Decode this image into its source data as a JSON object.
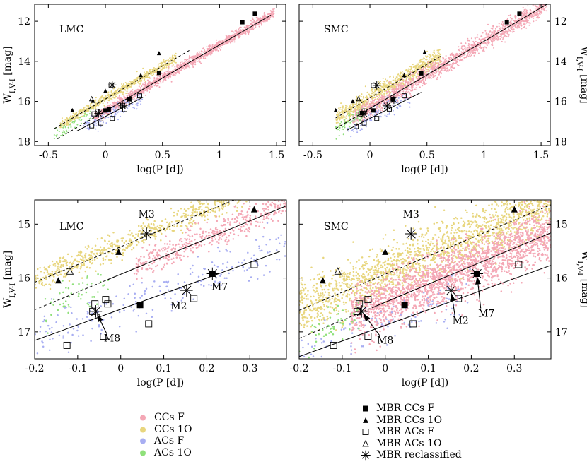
{
  "legend_left": [
    {
      "label": "CCs F",
      "color": "#f4a7b5"
    },
    {
      "label": "CCs 1O",
      "color": "#e8d67e"
    },
    {
      "label": "ACs F",
      "color": "#a8aef2"
    },
    {
      "label": "ACs 1O",
      "color": "#8fe07a"
    }
  ],
  "legend_right": [
    {
      "label": "MBR CCs F",
      "marker": "filled-square"
    },
    {
      "label": "MBR CCs 1O",
      "marker": "filled-triangle"
    },
    {
      "label": "MBR ACs F",
      "marker": "open-square"
    },
    {
      "label": "MBR ACs 1O",
      "marker": "open-triangle"
    },
    {
      "label": "MBR reclassified",
      "marker": "asterisk"
    }
  ],
  "chart_data": [
    {
      "type": "scatter",
      "panel_label": "LMC",
      "xlabel": "log(P [d])",
      "ylabel": "W_{I,V-I} [mag]",
      "ylabel_side": "left",
      "xlim": [
        -0.62,
        1.58
      ],
      "ylim": [
        18.2,
        11.15
      ],
      "xticks": [
        -0.5,
        0,
        0.5,
        1,
        1.5
      ],
      "xtick_labels": [
        "-0.5",
        "0",
        "0.5",
        "1",
        "1.5"
      ],
      "yticks": [
        12,
        14,
        16,
        18
      ],
      "ytick_labels": [
        "12",
        "14",
        "16",
        "18"
      ],
      "clouds": [
        {
          "name": "CCs 1O",
          "color": "#e8d67e",
          "x0": -0.4,
          "x1": 0.62,
          "slope": -3.3,
          "intercept": 15.88,
          "sigma": 0.11,
          "n": 700
        },
        {
          "name": "CCs F",
          "color": "#f4a7b5",
          "x0": -0.1,
          "x1": 1.48,
          "slope": -3.3,
          "intercept": 16.48,
          "sigma": 0.12,
          "n": 1500
        },
        {
          "name": "ACs F",
          "color": "#a8aef2",
          "x0": -0.2,
          "x1": 0.35,
          "slope": -2.9,
          "intercept": 16.75,
          "sigma": 0.2,
          "n": 130
        },
        {
          "name": "ACs 1O",
          "color": "#8fe07a",
          "x0": -0.45,
          "x1": -0.1,
          "slope": -3.3,
          "intercept": 16.2,
          "sigma": 0.15,
          "n": 60
        }
      ],
      "lines": [
        {
          "x": [
            -0.45,
            0.75
          ],
          "slope": -3.3,
          "intercept": 15.88,
          "style": "dashed"
        },
        {
          "x": [
            -0.05,
            1.45
          ],
          "slope": -3.3,
          "intercept": 16.48,
          "style": "solid"
        },
        {
          "x": [
            -0.42,
            0.0
          ],
          "slope": -3.3,
          "intercept": 16.48,
          "style": "dashed"
        },
        {
          "x": [
            -0.25,
            0.33
          ],
          "slope": -2.9,
          "intercept": 16.75,
          "style": "solid"
        }
      ],
      "markers": [
        {
          "x": 1.2,
          "y": 12.05,
          "type": "filled-square"
        },
        {
          "x": 1.31,
          "y": 11.62,
          "type": "filled-square"
        },
        {
          "x": 0.47,
          "y": 14.58,
          "type": "filled-square"
        },
        {
          "x": 0.21,
          "y": 15.88,
          "type": "filled-square"
        },
        {
          "x": 0.03,
          "y": 16.4,
          "type": "filled-square"
        },
        {
          "x": 0.0,
          "y": 16.45,
          "type": "filled-square"
        },
        {
          "x": -0.29,
          "y": 16.45,
          "type": "filled-triangle"
        },
        {
          "x": -0.11,
          "y": 15.98,
          "type": "filled-triangle"
        },
        {
          "x": 0.0,
          "y": 15.48,
          "type": "filled-triangle"
        },
        {
          "x": 0.31,
          "y": 14.7,
          "type": "filled-triangle"
        },
        {
          "x": 0.47,
          "y": 13.6,
          "type": "filled-triangle"
        },
        {
          "x": 0.05,
          "y": 15.18,
          "type": "open-square"
        },
        {
          "x": 0.3,
          "y": 15.72,
          "type": "open-square"
        },
        {
          "x": -0.12,
          "y": 17.22,
          "type": "open-square"
        },
        {
          "x": -0.04,
          "y": 17.08,
          "type": "open-square"
        },
        {
          "x": 0.15,
          "y": 16.2,
          "type": "open-square"
        },
        {
          "x": -0.07,
          "y": 16.5,
          "type": "open-square"
        },
        {
          "x": 0.17,
          "y": 16.4,
          "type": "open-square"
        },
        {
          "x": 0.06,
          "y": 16.85,
          "type": "open-square"
        },
        {
          "x": -0.1,
          "y": 16.62,
          "type": "open-square"
        },
        {
          "x": -0.12,
          "y": 15.88,
          "type": "open-triangle"
        },
        {
          "x": 0.06,
          "y": 15.18,
          "type": "asterisk"
        },
        {
          "x": 0.15,
          "y": 16.22,
          "type": "asterisk"
        },
        {
          "x": 0.21,
          "y": 15.92,
          "type": "asterisk"
        },
        {
          "x": -0.06,
          "y": 16.6,
          "type": "asterisk"
        }
      ],
      "annotations": []
    },
    {
      "type": "scatter",
      "panel_label": "SMC",
      "xlabel": "log(P [d])",
      "ylabel": "W_{I,V-I} [mag]",
      "ylabel_side": "right",
      "xlim": [
        -0.62,
        1.58
      ],
      "ylim": [
        18.2,
        11.15
      ],
      "xticks": [
        -0.5,
        0,
        0.5,
        1,
        1.5
      ],
      "xtick_labels": [
        "-0.5",
        "0",
        "0.5",
        "1",
        "1.5"
      ],
      "yticks": [
        12,
        14,
        16,
        18
      ],
      "ytick_labels": [
        "12",
        "14",
        "16",
        "18"
      ],
      "clouds": [
        {
          "name": "CCs 1O",
          "color": "#e8d67e",
          "x0": -0.3,
          "x1": 0.62,
          "slope": -3.35,
          "intercept": 15.82,
          "sigma": 0.22,
          "n": 900
        },
        {
          "name": "CCs F",
          "color": "#f4a7b5",
          "x0": -0.15,
          "x1": 1.55,
          "slope": -3.35,
          "intercept": 16.35,
          "sigma": 0.22,
          "n": 1700
        },
        {
          "name": "ACs F",
          "color": "#a8aef2",
          "x0": -0.2,
          "x1": 0.35,
          "slope": -2.9,
          "intercept": 16.85,
          "sigma": 0.2,
          "n": 110
        },
        {
          "name": "ACs 1O",
          "color": "#8fe07a",
          "x0": -0.3,
          "x1": -0.05,
          "slope": -3.3,
          "intercept": 16.4,
          "sigma": 0.2,
          "n": 70
        }
      ],
      "lines": [
        {
          "x": [
            -0.3,
            0.62
          ],
          "slope": -3.35,
          "intercept": 15.82,
          "style": "dashed"
        },
        {
          "x": [
            -0.1,
            1.55
          ],
          "slope": -3.35,
          "intercept": 16.35,
          "style": "solid"
        },
        {
          "x": [
            -0.3,
            0.05
          ],
          "slope": -3.35,
          "intercept": 16.35,
          "style": "dashed"
        },
        {
          "x": [
            -0.2,
            0.45
          ],
          "slope": -2.9,
          "intercept": 16.85,
          "style": "solid"
        }
      ],
      "markers": [
        {
          "x": 1.2,
          "y": 12.05,
          "type": "filled-square"
        },
        {
          "x": 1.31,
          "y": 11.62,
          "type": "filled-square"
        },
        {
          "x": 0.45,
          "y": 14.6,
          "type": "filled-square"
        },
        {
          "x": 0.2,
          "y": 15.9,
          "type": "filled-square"
        },
        {
          "x": 0.03,
          "y": 16.45,
          "type": "filled-square"
        },
        {
          "x": -0.07,
          "y": 16.58,
          "type": "filled-square"
        },
        {
          "x": -0.3,
          "y": 16.45,
          "type": "filled-triangle"
        },
        {
          "x": -0.15,
          "y": 16.0,
          "type": "filled-triangle"
        },
        {
          "x": 0.3,
          "y": 14.7,
          "type": "filled-triangle"
        },
        {
          "x": 0.48,
          "y": 13.55,
          "type": "filled-triangle"
        },
        {
          "x": 0.03,
          "y": 15.2,
          "type": "open-square"
        },
        {
          "x": 0.3,
          "y": 15.72,
          "type": "open-square"
        },
        {
          "x": -0.12,
          "y": 17.25,
          "type": "open-square"
        },
        {
          "x": -0.05,
          "y": 17.08,
          "type": "open-square"
        },
        {
          "x": 0.17,
          "y": 16.38,
          "type": "open-square"
        },
        {
          "x": -0.05,
          "y": 16.48,
          "type": "open-square"
        },
        {
          "x": 0.06,
          "y": 16.85,
          "type": "open-square"
        },
        {
          "x": -0.08,
          "y": 16.62,
          "type": "open-square"
        },
        {
          "x": -0.1,
          "y": 15.88,
          "type": "open-triangle"
        },
        {
          "x": 0.06,
          "y": 15.2,
          "type": "asterisk"
        },
        {
          "x": 0.15,
          "y": 16.22,
          "type": "asterisk"
        },
        {
          "x": 0.21,
          "y": 15.92,
          "type": "asterisk"
        },
        {
          "x": -0.05,
          "y": 16.62,
          "type": "asterisk"
        }
      ],
      "annotations": []
    },
    {
      "type": "scatter",
      "panel_label": "LMC",
      "xlabel": "log(P [d])",
      "ylabel": "W_{I,V-I} [mag]",
      "ylabel_side": "left",
      "xlim": [
        -0.2,
        0.385
      ],
      "ylim": [
        17.5,
        14.55
      ],
      "xticks": [
        -0.2,
        -0.1,
        0,
        0.1,
        0.2,
        0.3
      ],
      "xtick_labels": [
        "-0.2",
        "-0.1",
        "0",
        "0.1",
        "0.2",
        "0.3"
      ],
      "yticks": [
        15,
        16,
        17
      ],
      "ytick_labels": [
        "15",
        "16",
        "17"
      ],
      "clouds": [
        {
          "name": "CCs 1O",
          "color": "#e8d67e",
          "x0": -0.2,
          "x1": 0.3,
          "slope": -3.3,
          "intercept": 15.38,
          "sigma": 0.11,
          "n": 600
        },
        {
          "name": "CCs F",
          "color": "#f4a7b5",
          "x0": 0.03,
          "x1": 0.385,
          "slope": -3.3,
          "intercept": 15.9,
          "sigma": 0.12,
          "n": 420
        },
        {
          "name": "ACs F",
          "color": "#a8aef2",
          "x0": -0.2,
          "x1": 0.385,
          "slope": -2.9,
          "intercept": 16.55,
          "sigma": 0.2,
          "n": 220
        },
        {
          "name": "ACs 1O",
          "color": "#8fe07a",
          "x0": -0.18,
          "x1": -0.02,
          "slope": -3.3,
          "intercept": 16.05,
          "sigma": 0.17,
          "n": 55
        }
      ],
      "lines": [
        {
          "x": [
            -0.2,
            0.385
          ],
          "slope": -3.3,
          "intercept": 15.42,
          "style": "dashed"
        },
        {
          "x": [
            -0.03,
            0.385
          ],
          "slope": -3.3,
          "intercept": 15.93,
          "style": "solid"
        },
        {
          "x": [
            -0.2,
            0.05
          ],
          "slope": -3.3,
          "intercept": 15.93,
          "style": "dashed"
        },
        {
          "x": [
            -0.2,
            0.37
          ],
          "slope": -2.9,
          "intercept": 16.58,
          "style": "solid"
        }
      ],
      "markers": [
        {
          "x": 0.045,
          "y": 16.5,
          "type": "filled-square"
        },
        {
          "x": 0.213,
          "y": 15.92,
          "type": "filled-square"
        },
        {
          "x": -0.145,
          "y": 16.05,
          "type": "filled-triangle"
        },
        {
          "x": -0.005,
          "y": 15.52,
          "type": "filled-triangle"
        },
        {
          "x": 0.31,
          "y": 14.73,
          "type": "filled-triangle"
        },
        {
          "x": -0.118,
          "y": 15.88,
          "type": "open-triangle"
        },
        {
          "x": -0.06,
          "y": 16.48,
          "type": "open-square"
        },
        {
          "x": -0.035,
          "y": 16.4,
          "type": "open-square"
        },
        {
          "x": -0.03,
          "y": 16.48,
          "type": "open-square"
        },
        {
          "x": -0.065,
          "y": 16.62,
          "type": "open-square"
        },
        {
          "x": 0.17,
          "y": 16.38,
          "type": "open-square"
        },
        {
          "x": 0.065,
          "y": 16.85,
          "type": "open-square"
        },
        {
          "x": 0.31,
          "y": 15.75,
          "type": "open-square"
        },
        {
          "x": -0.04,
          "y": 17.08,
          "type": "open-square"
        },
        {
          "x": -0.125,
          "y": 17.25,
          "type": "open-square"
        },
        {
          "x": 0.06,
          "y": 15.18,
          "type": "asterisk"
        },
        {
          "x": 0.153,
          "y": 16.23,
          "type": "asterisk"
        },
        {
          "x": 0.213,
          "y": 15.92,
          "type": "asterisk"
        },
        {
          "x": -0.058,
          "y": 16.62,
          "type": "asterisk"
        }
      ],
      "annotations": [
        {
          "text": "M3",
          "x": 0.06,
          "y": 15.18,
          "tx": 0.06,
          "ty": 14.88,
          "arrow": false
        },
        {
          "text": "M7",
          "x": 0.213,
          "y": 15.92,
          "tx": 0.23,
          "ty": 16.22,
          "arrow": false
        },
        {
          "text": "M2",
          "x": 0.153,
          "y": 16.23,
          "tx": 0.135,
          "ty": 16.58,
          "arrow": false
        },
        {
          "text": "M8",
          "x": -0.058,
          "y": 16.62,
          "tx": -0.02,
          "ty": 17.18,
          "arrow": true
        }
      ]
    },
    {
      "type": "scatter",
      "panel_label": "SMC",
      "xlabel": "log(P [d])",
      "ylabel": "W_{I,V-I} [mag]",
      "ylabel_side": "right",
      "xlim": [
        -0.2,
        0.385
      ],
      "ylim": [
        17.5,
        14.55
      ],
      "xticks": [
        -0.2,
        -0.1,
        0,
        0.1,
        0.2,
        0.3
      ],
      "xtick_labels": [
        "-0.2",
        "-0.1",
        "0",
        "0.1",
        "0.2",
        "0.3"
      ],
      "yticks": [
        15,
        16,
        17
      ],
      "ytick_labels": [
        "15",
        "16",
        "17"
      ],
      "clouds": [
        {
          "name": "CCs 1O",
          "color": "#e8d67e",
          "x0": -0.2,
          "x1": 0.385,
          "slope": -3.35,
          "intercept": 15.9,
          "sigma": 0.25,
          "n": 1600
        },
        {
          "name": "CCs F",
          "color": "#f4a7b5",
          "x0": -0.08,
          "x1": 0.385,
          "slope": -3.35,
          "intercept": 16.45,
          "sigma": 0.25,
          "n": 2000
        },
        {
          "name": "ACs F",
          "color": "#a8aef2",
          "x0": -0.2,
          "x1": 0.2,
          "slope": -2.9,
          "intercept": 16.88,
          "sigma": 0.2,
          "n": 110
        },
        {
          "name": "ACs 1O",
          "color": "#8fe07a",
          "x0": -0.2,
          "x1": -0.06,
          "slope": -3.3,
          "intercept": 16.45,
          "sigma": 0.2,
          "n": 50
        }
      ],
      "lines": [
        {
          "x": [
            -0.2,
            0.385
          ],
          "slope": -3.35,
          "intercept": 15.93,
          "style": "dashed"
        },
        {
          "x": [
            -0.03,
            0.385
          ],
          "slope": -3.35,
          "intercept": 16.45,
          "style": "solid"
        },
        {
          "x": [
            -0.2,
            0.05
          ],
          "slope": -3.35,
          "intercept": 16.45,
          "style": "dashed"
        },
        {
          "x": [
            -0.2,
            0.385
          ],
          "slope": -2.9,
          "intercept": 16.88,
          "style": "solid"
        }
      ],
      "markers": [
        {
          "x": 0.045,
          "y": 16.5,
          "type": "filled-square"
        },
        {
          "x": 0.213,
          "y": 15.92,
          "type": "filled-square"
        },
        {
          "x": -0.145,
          "y": 16.05,
          "type": "filled-triangle"
        },
        {
          "x": 0.0,
          "y": 15.52,
          "type": "filled-triangle"
        },
        {
          "x": 0.3,
          "y": 14.73,
          "type": "filled-triangle"
        },
        {
          "x": -0.11,
          "y": 15.88,
          "type": "open-triangle"
        },
        {
          "x": -0.06,
          "y": 16.48,
          "type": "open-square"
        },
        {
          "x": -0.04,
          "y": 16.4,
          "type": "open-square"
        },
        {
          "x": -0.065,
          "y": 16.62,
          "type": "open-square"
        },
        {
          "x": 0.17,
          "y": 16.38,
          "type": "open-square"
        },
        {
          "x": 0.065,
          "y": 16.85,
          "type": "open-square"
        },
        {
          "x": 0.31,
          "y": 15.75,
          "type": "open-square"
        },
        {
          "x": -0.04,
          "y": 17.08,
          "type": "open-square"
        },
        {
          "x": -0.12,
          "y": 17.25,
          "type": "open-square"
        },
        {
          "x": 0.06,
          "y": 15.18,
          "type": "asterisk"
        },
        {
          "x": 0.153,
          "y": 16.23,
          "type": "asterisk"
        },
        {
          "x": 0.213,
          "y": 15.92,
          "type": "asterisk"
        },
        {
          "x": -0.055,
          "y": 16.62,
          "type": "asterisk"
        }
      ],
      "annotations": [
        {
          "text": "M3",
          "x": 0.06,
          "y": 15.18,
          "tx": 0.06,
          "ty": 14.88,
          "arrow": false
        },
        {
          "text": "M7",
          "x": 0.213,
          "y": 15.92,
          "tx": 0.235,
          "ty": 16.72,
          "arrow": true
        },
        {
          "text": "M2",
          "x": 0.153,
          "y": 16.23,
          "tx": 0.175,
          "ty": 16.85,
          "arrow": true
        },
        {
          "text": "M8",
          "x": -0.055,
          "y": 16.62,
          "tx": -0.0,
          "ty": 17.22,
          "arrow": true
        }
      ]
    }
  ]
}
